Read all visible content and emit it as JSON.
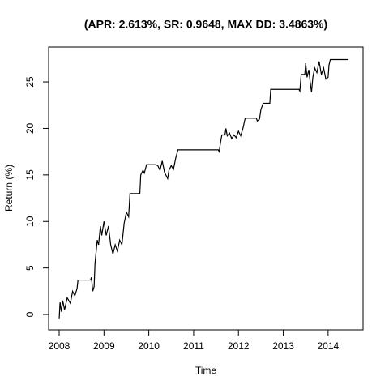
{
  "chart_data": {
    "type": "line",
    "title": "(APR: 2.613%, SR: 0.9648, MAX DD: 3.4863%)",
    "x_label": "Time",
    "y_label": "Return (%)",
    "x": [
      2008.0,
      2008.02,
      2008.05,
      2008.08,
      2008.12,
      2008.18,
      2008.25,
      2008.3,
      2008.35,
      2008.4,
      2008.42,
      2008.7,
      2008.72,
      2008.75,
      2008.78,
      2008.8,
      2008.85,
      2008.88,
      2008.92,
      2008.95,
      2009.0,
      2009.05,
      2009.1,
      2009.15,
      2009.2,
      2009.25,
      2009.3,
      2009.35,
      2009.4,
      2009.45,
      2009.5,
      2009.55,
      2009.58,
      2009.8,
      2009.82,
      2009.87,
      2009.9,
      2009.95,
      2010.15,
      2010.2,
      2010.25,
      2010.3,
      2010.35,
      2010.42,
      2010.45,
      2010.5,
      2010.55,
      2010.6,
      2010.65,
      2011.55,
      2011.57,
      2011.6,
      2011.63,
      2011.7,
      2011.72,
      2011.75,
      2011.8,
      2011.85,
      2011.9,
      2011.95,
      2012.0,
      2012.05,
      2012.1,
      2012.15,
      2012.4,
      2012.42,
      2012.47,
      2012.5,
      2012.55,
      2012.7,
      2012.72,
      2013.35,
      2013.37,
      2013.4,
      2013.48,
      2013.5,
      2013.53,
      2013.57,
      2013.6,
      2013.63,
      2013.66,
      2013.7,
      2013.75,
      2013.8,
      2013.85,
      2013.9,
      2013.95,
      2014.0,
      2014.02,
      2014.05,
      2014.45
    ],
    "values": [
      -0.5,
      1.3,
      0.3,
      1.5,
      0.5,
      1.8,
      1.2,
      2.5,
      2.0,
      2.8,
      3.7,
      3.7,
      4.0,
      2.5,
      3.0,
      5.5,
      8.0,
      7.5,
      9.5,
      8.5,
      10.0,
      8.5,
      9.5,
      7.5,
      6.5,
      7.5,
      6.8,
      8.0,
      7.5,
      9.8,
      11.0,
      10.5,
      13.0,
      13.0,
      15.0,
      15.5,
      15.2,
      16.1,
      16.1,
      16.0,
      15.5,
      16.5,
      15.3,
      14.6,
      15.5,
      16.0,
      15.6,
      16.8,
      17.7,
      17.7,
      17.5,
      18.5,
      19.3,
      19.3,
      20.0,
      19.2,
      19.5,
      18.9,
      19.3,
      19.0,
      19.7,
      19.2,
      20.0,
      21.1,
      21.1,
      20.8,
      21.0,
      22.0,
      22.7,
      22.7,
      24.2,
      24.2,
      24.0,
      25.8,
      25.8,
      27.0,
      25.5,
      26.3,
      25.0,
      23.9,
      25.5,
      26.5,
      26.0,
      27.2,
      25.8,
      26.5,
      25.3,
      25.5,
      26.8,
      27.4,
      27.4
    ],
    "color": "#000000",
    "xlim": [
      2007.765,
      2014.78
    ],
    "ylim": [
      -1.65,
      28.75
    ],
    "xticks": [
      2008,
      2009,
      2010,
      2011,
      2012,
      2013,
      2014
    ],
    "yticks": [
      0,
      5,
      10,
      15,
      20,
      25
    ]
  }
}
